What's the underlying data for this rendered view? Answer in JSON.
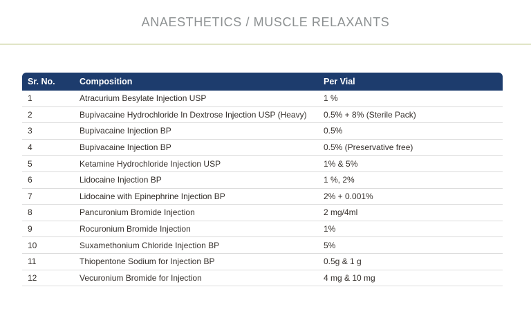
{
  "page": {
    "title": "ANAESTHETICS / MUSCLE RELAXANTS"
  },
  "colors": {
    "header_bg": "#1d3c6d",
    "header_text": "#ffffff",
    "title_text": "#8c9091",
    "title_divider": "#e1e5c6",
    "row_border": "#dcdcdc",
    "body_text": "#35302c"
  },
  "table": {
    "columns": [
      "Sr. No.",
      "Composition",
      "Per Vial"
    ],
    "rows": [
      {
        "sr": "1",
        "composition": "Atracurium Besylate Injection USP",
        "per_vial": "1 %"
      },
      {
        "sr": "2",
        "composition": "Bupivacaine Hydrochloride In Dextrose Injection USP (Heavy)",
        "per_vial": "0.5% + 8% (Sterile Pack)"
      },
      {
        "sr": "3",
        "composition": "Bupivacaine Injection BP",
        "per_vial": "0.5%"
      },
      {
        "sr": "4",
        "composition": "Bupivacaine Injection BP",
        "per_vial": "0.5% (Preservative free)"
      },
      {
        "sr": "5",
        "composition": "Ketamine Hydrochloride Injection USP",
        "per_vial": "1% & 5%"
      },
      {
        "sr": "6",
        "composition": "Lidocaine Injection BP",
        "per_vial": "1 %, 2%"
      },
      {
        "sr": "7",
        "composition": "Lidocaine with Epinephrine Injection BP",
        "per_vial": "2% + 0.001%"
      },
      {
        "sr": "8",
        "composition": "Pancuronium Bromide Injection",
        "per_vial": "2 mg/4ml"
      },
      {
        "sr": "9",
        "composition": "Rocuronium Bromide Injection",
        "per_vial": "1%"
      },
      {
        "sr": "10",
        "composition": "Suxamethonium Chloride Injection BP",
        "per_vial": "5%"
      },
      {
        "sr": "11",
        "composition": "Thiopentone Sodium for Injection BP",
        "per_vial": "0.5g & 1 g"
      },
      {
        "sr": "12",
        "composition": "Vecuronium Bromide for Injection",
        "per_vial": "4 mg & 10 mg"
      }
    ]
  }
}
